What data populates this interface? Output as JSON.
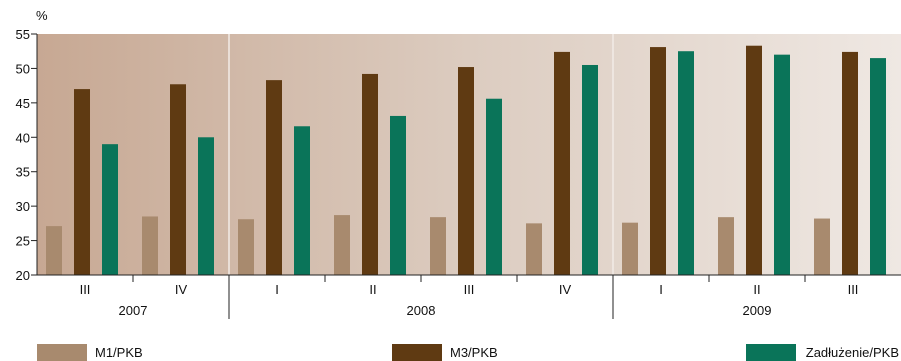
{
  "chart_data": {
    "type": "bar",
    "ylabel": "%",
    "ylim": [
      20,
      55
    ],
    "yticks": [
      20,
      25,
      30,
      35,
      40,
      45,
      50,
      55
    ],
    "grid": false,
    "legend_position": "bottom",
    "categories": [
      "III",
      "IV",
      "I",
      "II",
      "III",
      "IV",
      "I",
      "II",
      "III"
    ],
    "year_groups": [
      {
        "label": "2007",
        "start": 0,
        "end": 1
      },
      {
        "label": "2008",
        "start": 2,
        "end": 5
      },
      {
        "label": "2009",
        "start": 6,
        "end": 8
      }
    ],
    "series": [
      {
        "name": "M1/PKB",
        "color": "#a88a6e",
        "values": [
          27.1,
          28.5,
          28.1,
          28.7,
          28.4,
          27.5,
          27.6,
          28.4,
          28.2
        ]
      },
      {
        "name": "M3/PKB",
        "color": "#5f3a12",
        "values": [
          47.0,
          47.7,
          48.3,
          49.2,
          50.2,
          52.4,
          53.1,
          53.3,
          52.4
        ]
      },
      {
        "name": "Zadłużenie/PKB",
        "color": "#0a7459",
        "values": [
          39.0,
          40.0,
          41.6,
          43.1,
          45.6,
          50.5,
          52.5,
          52.0,
          51.5
        ]
      }
    ]
  }
}
